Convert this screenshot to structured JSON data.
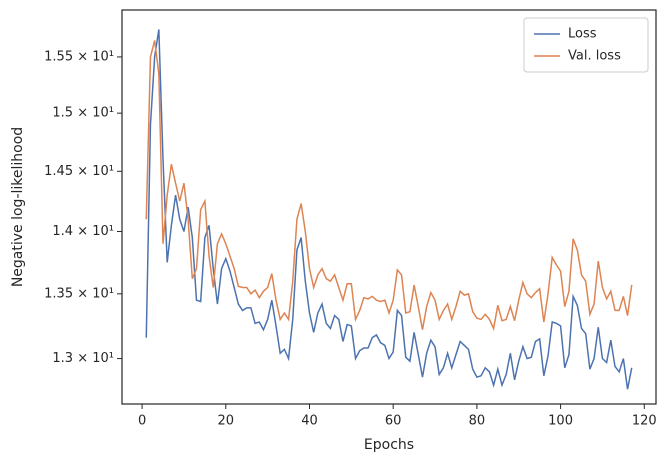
{
  "chart_data": {
    "type": "line",
    "xlabel": "Epochs",
    "ylabel": "Negative log-likelihood",
    "x": [
      1,
      2,
      3,
      4,
      5,
      6,
      7,
      8,
      9,
      10,
      11,
      12,
      13,
      14,
      15,
      16,
      17,
      18,
      19,
      20,
      21,
      22,
      23,
      24,
      25,
      26,
      27,
      28,
      29,
      30,
      31,
      32,
      33,
      34,
      35,
      36,
      37,
      38,
      39,
      40,
      41,
      42,
      43,
      44,
      45,
      46,
      47,
      48,
      49,
      50,
      51,
      52,
      53,
      54,
      55,
      56,
      57,
      58,
      59,
      60,
      61,
      62,
      63,
      64,
      65,
      66,
      67,
      68,
      69,
      70,
      71,
      72,
      73,
      74,
      75,
      76,
      77,
      78,
      79,
      80,
      81,
      82,
      83,
      84,
      85,
      86,
      87,
      88,
      89,
      90,
      91,
      92,
      93,
      94,
      95,
      96,
      97,
      98,
      99,
      100,
      101,
      102,
      103,
      104,
      105,
      106,
      107,
      108,
      109,
      110,
      111,
      112,
      113,
      114,
      115,
      116,
      117
    ],
    "series": [
      {
        "name": "Loss",
        "color": "#4c72b0",
        "values": [
          13.16,
          14.9,
          15.5,
          15.75,
          14.6,
          13.75,
          14.05,
          14.3,
          14.1,
          14.0,
          14.2,
          13.95,
          13.45,
          13.44,
          13.95,
          14.05,
          13.7,
          13.42,
          13.7,
          13.78,
          13.68,
          13.55,
          13.42,
          13.37,
          13.39,
          13.39,
          13.27,
          13.28,
          13.22,
          13.3,
          13.45,
          13.25,
          13.04,
          13.07,
          13.0,
          13.3,
          13.85,
          13.95,
          13.6,
          13.35,
          13.2,
          13.35,
          13.42,
          13.27,
          13.23,
          13.33,
          13.3,
          13.13,
          13.26,
          13.25,
          13.0,
          13.06,
          13.08,
          13.08,
          13.16,
          13.18,
          13.12,
          13.1,
          13.0,
          13.05,
          13.37,
          13.33,
          13.01,
          12.98,
          13.2,
          13.03,
          12.86,
          13.04,
          13.14,
          13.09,
          12.88,
          12.93,
          13.04,
          12.93,
          13.03,
          13.13,
          13.1,
          13.07,
          12.92,
          12.86,
          12.87,
          12.93,
          12.9,
          12.8,
          12.92,
          12.8,
          12.88,
          13.04,
          12.84,
          12.98,
          13.09,
          13.0,
          13.01,
          13.13,
          13.15,
          12.87,
          13.02,
          13.28,
          13.27,
          13.25,
          12.93,
          13.03,
          13.48,
          13.41,
          13.23,
          13.19,
          12.92,
          13.0,
          13.24,
          13.0,
          12.97,
          13.14,
          12.94,
          12.9,
          13.0,
          12.77,
          12.93
        ]
      },
      {
        "name": "Val. loss",
        "color": "#dd8452",
        "values": [
          14.1,
          15.5,
          15.65,
          15.35,
          13.9,
          14.3,
          14.56,
          14.4,
          14.25,
          14.4,
          14.1,
          13.62,
          13.7,
          14.18,
          14.25,
          13.8,
          13.55,
          13.9,
          13.98,
          13.9,
          13.8,
          13.7,
          13.56,
          13.55,
          13.55,
          13.5,
          13.53,
          13.47,
          13.52,
          13.55,
          13.66,
          13.45,
          13.3,
          13.35,
          13.3,
          13.6,
          14.1,
          14.23,
          14.0,
          13.7,
          13.55,
          13.65,
          13.7,
          13.62,
          13.6,
          13.65,
          13.55,
          13.45,
          13.58,
          13.58,
          13.3,
          13.37,
          13.47,
          13.46,
          13.48,
          13.45,
          13.44,
          13.45,
          13.35,
          13.45,
          13.69,
          13.65,
          13.35,
          13.36,
          13.57,
          13.4,
          13.22,
          13.4,
          13.51,
          13.45,
          13.3,
          13.37,
          13.42,
          13.3,
          13.4,
          13.52,
          13.49,
          13.5,
          13.36,
          13.31,
          13.3,
          13.34,
          13.3,
          13.23,
          13.41,
          13.29,
          13.3,
          13.4,
          13.29,
          13.45,
          13.59,
          13.5,
          13.47,
          13.51,
          13.54,
          13.28,
          13.5,
          13.79,
          13.73,
          13.68,
          13.4,
          13.52,
          13.94,
          13.85,
          13.65,
          13.6,
          13.34,
          13.42,
          13.76,
          13.55,
          13.46,
          13.52,
          13.37,
          13.37,
          13.48,
          13.33,
          13.57
        ]
      }
    ],
    "xlim": [
      -4.8,
      122.8
    ],
    "xticks": [
      0,
      20,
      40,
      60,
      80,
      100,
      120
    ],
    "ylim": [
      12.66,
      15.93
    ],
    "log_y": true,
    "yticks": [
      {
        "value": 13,
        "label": "1.3 × 10¹"
      },
      {
        "value": 13.5,
        "label": "1.35 × 10¹"
      },
      {
        "value": 14,
        "label": "1.4 × 10¹"
      },
      {
        "value": 14.5,
        "label": "1.45 × 10¹"
      },
      {
        "value": 15,
        "label": "1.5 × 10¹"
      },
      {
        "value": 15.5,
        "label": "1.55 × 10¹"
      }
    ],
    "grid": false,
    "legend": "upper right"
  }
}
